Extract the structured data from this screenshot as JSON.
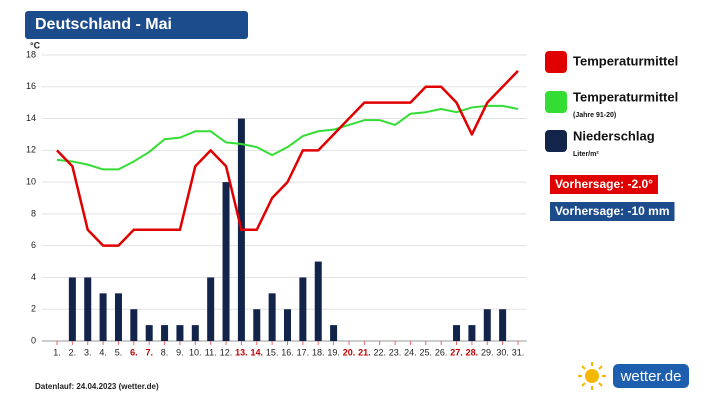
{
  "chart_data": {
    "type": "combo",
    "title": "Deutschland - Mai",
    "y_unit": "°C",
    "categories": [
      "1.",
      "2.",
      "3.",
      "4.",
      "5.",
      "6.",
      "7.",
      "8.",
      "9.",
      "10.",
      "11.",
      "12.",
      "13.",
      "14.",
      "15.",
      "16.",
      "17.",
      "18.",
      "19.",
      "20.",
      "21.",
      "22.",
      "23.",
      "24.",
      "25.",
      "26.",
      "27.",
      "28.",
      "29.",
      "30.",
      "31."
    ],
    "category_colors": [
      "#222",
      "#222",
      "#222",
      "#222",
      "#222",
      "#c00000",
      "#c00000",
      "#222",
      "#222",
      "#222",
      "#222",
      "#222",
      "#c00000",
      "#c00000",
      "#222",
      "#222",
      "#222",
      "#222",
      "#222",
      "#c00000",
      "#c00000",
      "#222",
      "#222",
      "#222",
      "#222",
      "#222",
      "#c00000",
      "#c00000",
      "#222",
      "#222",
      "#222"
    ],
    "series": [
      {
        "name": "Temperaturmittel",
        "type": "line",
        "color": "#e00000",
        "values": [
          12,
          11,
          7,
          6,
          6,
          7,
          7,
          7,
          7,
          11,
          12,
          11,
          7,
          7,
          9,
          10,
          12,
          12,
          13,
          14,
          15,
          15,
          15,
          15,
          16,
          16,
          15,
          13,
          15,
          16,
          17
        ]
      },
      {
        "name": "Temperaturmittel",
        "note": "(Jahre 91-20)",
        "type": "line",
        "color": "#33dd33",
        "values": [
          11.4,
          11.3,
          11.1,
          10.8,
          10.8,
          11.3,
          11.9,
          12.7,
          12.8,
          13.2,
          13.2,
          12.5,
          12.4,
          12.2,
          11.7,
          12.2,
          12.9,
          13.2,
          13.3,
          13.6,
          13.9,
          13.9,
          13.6,
          14.3,
          14.4,
          14.6,
          14.4,
          14.7,
          14.8,
          14.8,
          14.6
        ]
      },
      {
        "name": "Niederschlag",
        "note": "Liter/m²",
        "type": "bar",
        "color": "#12244a",
        "values": [
          0,
          4,
          4,
          3,
          3,
          2,
          1,
          1,
          1,
          1,
          4,
          10,
          14,
          2,
          3,
          2,
          4,
          5,
          1,
          0,
          0,
          0,
          0,
          0,
          0,
          0,
          1,
          1,
          2,
          2,
          0
        ]
      }
    ],
    "ylim": [
      0,
      18
    ],
    "yticks": [
      0,
      2,
      4,
      6,
      8,
      10,
      12,
      14,
      16,
      18
    ],
    "grid": true,
    "annotations": [
      {
        "text": "Vorhersage: -2.0°",
        "color": "#e00000"
      },
      {
        "text": "Vorhersage: -10 mm",
        "color": "#1d4c8c"
      }
    ],
    "footer": "Datenlauf: 24.04.2023 (wetter.de)",
    "logo": "wetter.de"
  }
}
